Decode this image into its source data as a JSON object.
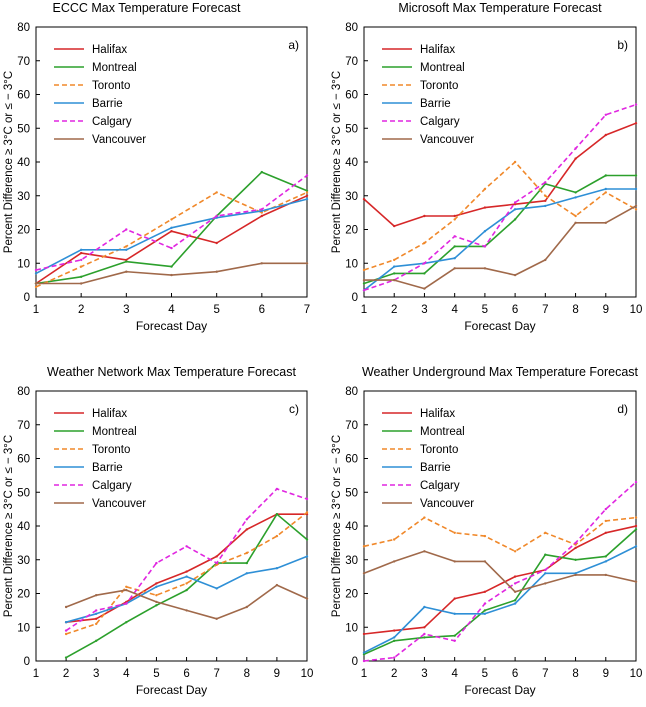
{
  "series_styles": [
    {
      "name": "Halifax",
      "color": "#d62728",
      "dash": "solid"
    },
    {
      "name": "Montreal",
      "color": "#2ca02c",
      "dash": "solid"
    },
    {
      "name": "Toronto",
      "color": "#f0882a",
      "dash": "dashed"
    },
    {
      "name": "Barrie",
      "color": "#2e8fd6",
      "dash": "solid"
    },
    {
      "name": "Calgary",
      "color": "#e026e0",
      "dash": "dashed"
    },
    {
      "name": "Vancouver",
      "color": "#a0694a",
      "dash": "solid"
    }
  ],
  "chart_data": [
    {
      "type": "line",
      "title": "ECCC Max Temperature Forecast",
      "panel_label": "a)",
      "xlabel": "Forecast Day",
      "ylabel": "Percent Difference ≥ 3°C or ≤ − 3°C",
      "xlim": [
        1,
        7
      ],
      "ylim": [
        0,
        80
      ],
      "xticks": [
        1,
        2,
        3,
        4,
        5,
        6,
        7
      ],
      "yticks": [
        0,
        10,
        20,
        30,
        40,
        50,
        60,
        70,
        80
      ],
      "legend_position": "top-left",
      "grid": false,
      "series": [
        {
          "name": "Halifax",
          "x": [
            1,
            2,
            3,
            4,
            5,
            6,
            7
          ],
          "values": [
            4,
            13,
            11,
            19.5,
            16,
            24,
            30
          ]
        },
        {
          "name": "Montreal",
          "x": [
            1,
            2,
            3,
            4,
            5,
            6,
            7
          ],
          "values": [
            4,
            6,
            10.5,
            9,
            24,
            37,
            31.5
          ]
        },
        {
          "name": "Toronto",
          "x": [
            1,
            2,
            3,
            4,
            5,
            6,
            7
          ],
          "values": [
            3,
            9,
            15,
            23,
            31,
            25,
            31
          ]
        },
        {
          "name": "Barrie",
          "x": [
            1,
            2,
            3,
            4,
            5,
            6,
            7
          ],
          "values": [
            7,
            14,
            14,
            20.5,
            23.5,
            25.5,
            29
          ]
        },
        {
          "name": "Calgary",
          "x": [
            1,
            2,
            3,
            4,
            5,
            6,
            7
          ],
          "values": [
            8,
            11,
            20,
            14.5,
            24,
            26,
            36
          ]
        },
        {
          "name": "Vancouver",
          "x": [
            1,
            2,
            3,
            4,
            5,
            6,
            7
          ],
          "values": [
            4,
            4,
            7.5,
            6.5,
            7.5,
            10,
            10
          ]
        }
      ]
    },
    {
      "type": "line",
      "title": "Microsoft Max Temperature Forecast",
      "panel_label": "b)",
      "xlabel": "Forecast Day",
      "ylabel": "Percent Difference ≥ 3°C or ≤ − 3°C",
      "xlim": [
        1,
        10
      ],
      "ylim": [
        0,
        80
      ],
      "xticks": [
        1,
        2,
        3,
        4,
        5,
        6,
        7,
        8,
        9,
        10
      ],
      "yticks": [
        0,
        10,
        20,
        30,
        40,
        50,
        60,
        70,
        80
      ],
      "legend_position": "top-left",
      "grid": false,
      "series": [
        {
          "name": "Halifax",
          "x": [
            1,
            2,
            3,
            4,
            5,
            6,
            7,
            8,
            9,
            10
          ],
          "values": [
            29,
            21,
            24,
            24,
            26.5,
            27.5,
            28.5,
            41,
            48,
            51.5
          ]
        },
        {
          "name": "Montreal",
          "x": [
            1,
            2,
            3,
            4,
            5,
            6,
            7,
            8,
            9,
            10
          ],
          "values": [
            4,
            7,
            7,
            15,
            15,
            23,
            33.5,
            31,
            36,
            36
          ]
        },
        {
          "name": "Toronto",
          "x": [
            1,
            2,
            3,
            4,
            5,
            6,
            7,
            8,
            9,
            10
          ],
          "values": [
            8,
            11,
            16,
            23,
            32,
            40,
            30,
            24,
            31,
            26
          ]
        },
        {
          "name": "Barrie",
          "x": [
            1,
            2,
            3,
            4,
            5,
            6,
            7,
            8,
            9,
            10
          ],
          "values": [
            2,
            9,
            10,
            11.5,
            19.5,
            26,
            27,
            29.5,
            32,
            32
          ]
        },
        {
          "name": "Calgary",
          "x": [
            1,
            2,
            3,
            4,
            5,
            6,
            7,
            8,
            9,
            10
          ],
          "values": [
            2,
            5,
            10,
            18,
            15,
            28,
            34,
            44,
            54,
            57
          ]
        },
        {
          "name": "Vancouver",
          "x": [
            1,
            2,
            3,
            4,
            5,
            6,
            7,
            8,
            9,
            10
          ],
          "values": [
            5,
            5,
            2.5,
            8.5,
            8.5,
            6.5,
            11,
            22,
            22,
            27
          ]
        }
      ]
    },
    {
      "type": "line",
      "title": "Weather Network Max Temperature Forecast",
      "panel_label": "c)",
      "xlabel": "Forecast Day",
      "ylabel": "Percent Difference ≥ 3°C or ≤ − 3°C",
      "xlim": [
        1,
        10
      ],
      "ylim": [
        0,
        80
      ],
      "xticks": [
        1,
        2,
        3,
        4,
        5,
        6,
        7,
        8,
        9,
        10
      ],
      "yticks": [
        0,
        10,
        20,
        30,
        40,
        50,
        60,
        70,
        80
      ],
      "legend_position": "top-left",
      "grid": false,
      "series": [
        {
          "name": "Halifax",
          "x": [
            2,
            3,
            4,
            5,
            6,
            7,
            8,
            9,
            10
          ],
          "values": [
            11.5,
            12.5,
            17.5,
            23,
            26.5,
            31,
            39,
            43.5,
            43.5
          ]
        },
        {
          "name": "Montreal",
          "x": [
            2,
            3,
            4,
            5,
            6,
            7,
            8,
            9,
            10
          ],
          "values": [
            1,
            6,
            11.5,
            16.5,
            21,
            29,
            29,
            43.5,
            36
          ]
        },
        {
          "name": "Toronto",
          "x": [
            2,
            3,
            4,
            5,
            6,
            7,
            8,
            9,
            10
          ],
          "values": [
            8,
            11,
            22,
            19.5,
            23,
            28.5,
            32,
            37,
            44
          ]
        },
        {
          "name": "Barrie",
          "x": [
            2,
            3,
            4,
            5,
            6,
            7,
            8,
            9,
            10
          ],
          "values": [
            11.5,
            14,
            17,
            22,
            25,
            21.5,
            26,
            27.5,
            31
          ]
        },
        {
          "name": "Calgary",
          "x": [
            2,
            3,
            4,
            5,
            6,
            7,
            8,
            9,
            10
          ],
          "values": [
            9,
            15,
            17,
            29,
            34,
            29,
            42,
            51,
            48
          ]
        },
        {
          "name": "Vancouver",
          "x": [
            2,
            3,
            4,
            5,
            6,
            7,
            8,
            9,
            10
          ],
          "values": [
            16,
            19.5,
            21,
            17.5,
            15,
            12.5,
            16,
            22.5,
            18.5
          ]
        }
      ]
    },
    {
      "type": "line",
      "title": "Weather Underground Max Temperature Forecast",
      "panel_label": "d)",
      "xlabel": "Forecast Day",
      "ylabel": "Percent Difference ≥ 3°C or ≤ − 3°C",
      "xlim": [
        1,
        10
      ],
      "ylim": [
        0,
        80
      ],
      "xticks": [
        1,
        2,
        3,
        4,
        5,
        6,
        7,
        8,
        9,
        10
      ],
      "yticks": [
        0,
        10,
        20,
        30,
        40,
        50,
        60,
        70,
        80
      ],
      "legend_position": "top-left",
      "grid": false,
      "series": [
        {
          "name": "Halifax",
          "x": [
            1,
            2,
            3,
            4,
            5,
            6,
            7,
            8,
            9,
            10
          ],
          "values": [
            8,
            9,
            10,
            18.5,
            20.5,
            25,
            27,
            33.5,
            38,
            40
          ]
        },
        {
          "name": "Montreal",
          "x": [
            1,
            2,
            3,
            4,
            5,
            6,
            7,
            8,
            9,
            10
          ],
          "values": [
            2,
            6,
            7,
            7.5,
            15,
            18,
            31.5,
            30,
            31,
            39
          ]
        },
        {
          "name": "Toronto",
          "x": [
            1,
            2,
            3,
            4,
            5,
            6,
            7,
            8,
            9,
            10
          ],
          "values": [
            34,
            36,
            42.5,
            38,
            37,
            32.5,
            38,
            34.5,
            41.5,
            42.5
          ]
        },
        {
          "name": "Barrie",
          "x": [
            1,
            2,
            3,
            4,
            5,
            6,
            7,
            8,
            9,
            10
          ],
          "values": [
            2.5,
            7,
            16,
            14,
            14,
            17,
            26,
            26,
            29.5,
            34
          ]
        },
        {
          "name": "Calgary",
          "x": [
            1,
            2,
            3,
            4,
            5,
            6,
            7,
            8,
            9,
            10
          ],
          "values": [
            0,
            1,
            8,
            6,
            17,
            23,
            27,
            35,
            45,
            53
          ]
        },
        {
          "name": "Vancouver",
          "x": [
            1,
            2,
            3,
            4,
            5,
            6,
            7,
            8,
            9,
            10
          ],
          "values": [
            26,
            29.5,
            32.5,
            29.5,
            29.5,
            20.5,
            23,
            25.5,
            25.5,
            23.5
          ]
        }
      ]
    }
  ]
}
